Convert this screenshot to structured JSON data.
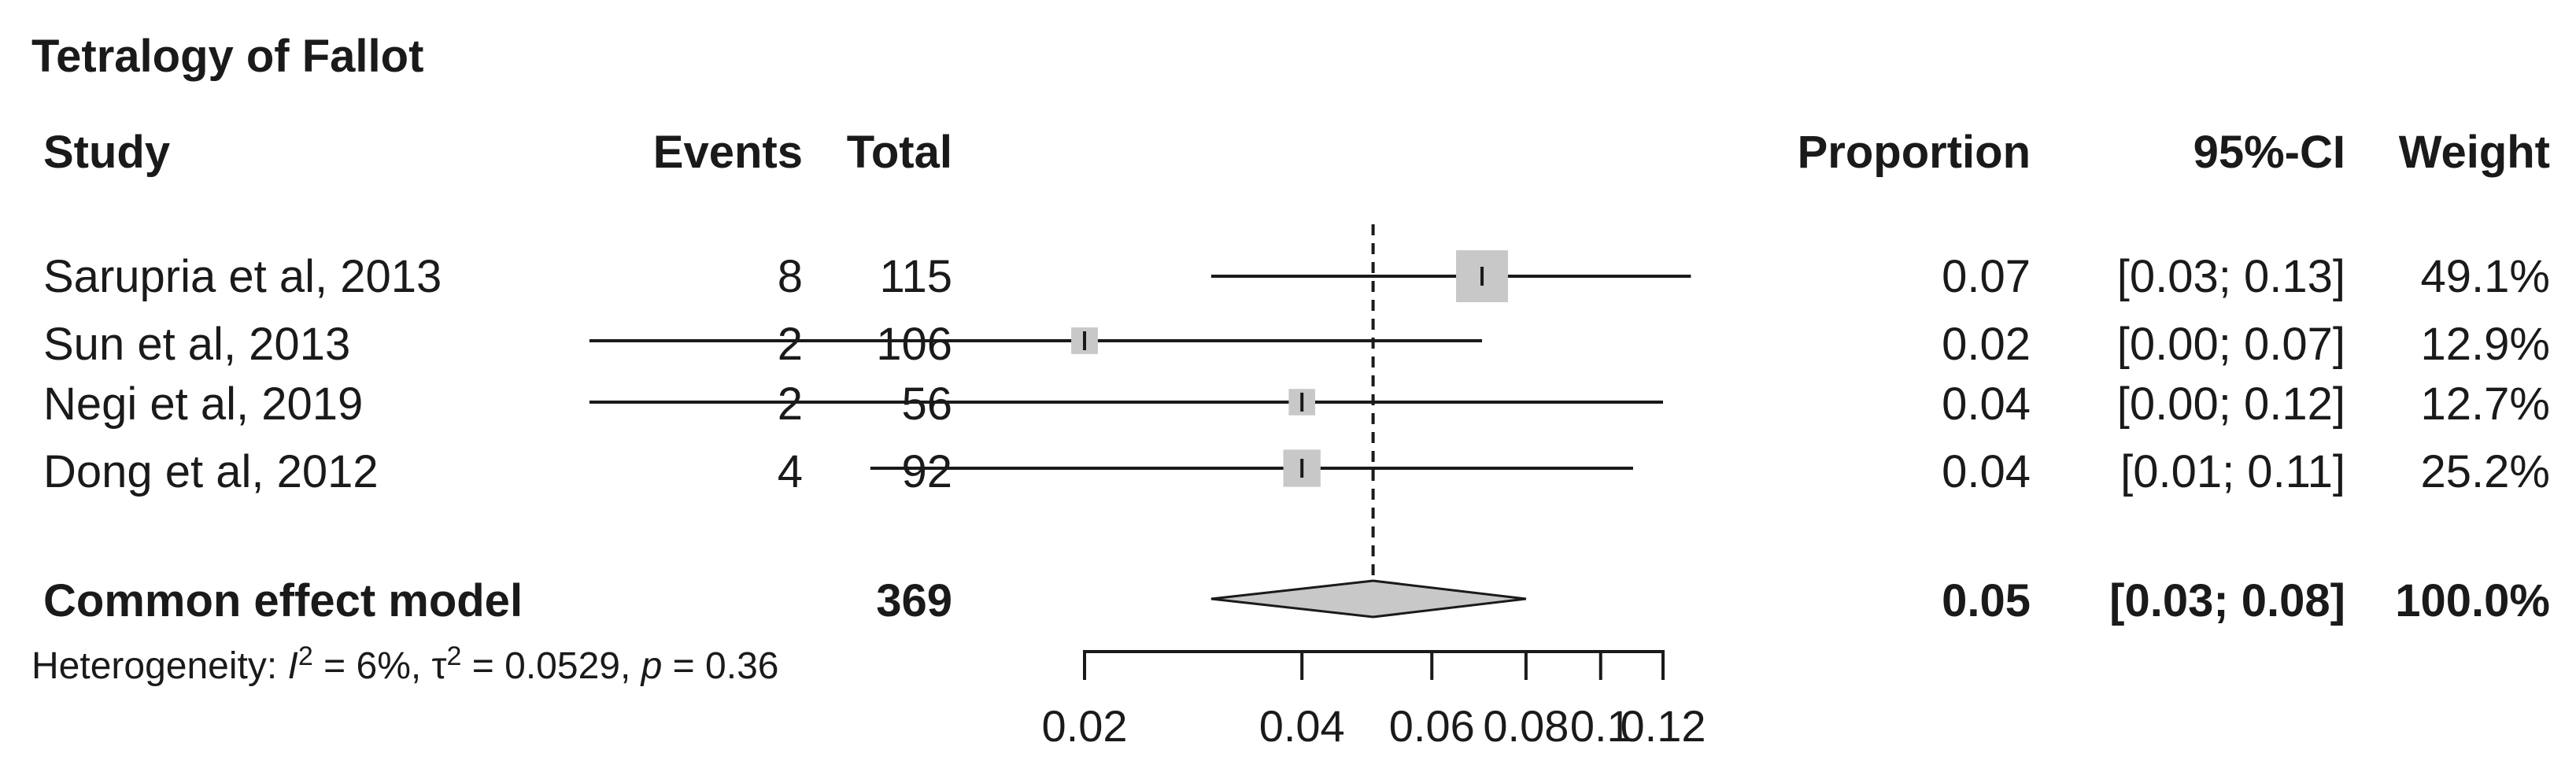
{
  "title": "Tetralogy of Fallot",
  "headers": {
    "study": "Study",
    "events": "Events",
    "total": "Total",
    "proportion": "Proportion",
    "ci": "95%-CI",
    "weight": "Weight"
  },
  "studies": [
    {
      "study": "Sarupria et al, 2013",
      "events": "8",
      "total": "115",
      "proportion": "0.07",
      "ci": "[0.03; 0.13]",
      "weight": "49.1%"
    },
    {
      "study": "Sun et al, 2013",
      "events": "2",
      "total": "106",
      "proportion": "0.02",
      "ci": "[0.00; 0.07]",
      "weight": "12.9%"
    },
    {
      "study": "Negi et al, 2019",
      "events": "2",
      "total": "56",
      "proportion": "0.04",
      "ci": "[0.00; 0.12]",
      "weight": "12.7%"
    },
    {
      "study": "Dong et al, 2012",
      "events": "4",
      "total": "92",
      "proportion": "0.04",
      "ci": "[0.01; 0.11]",
      "weight": "25.2%"
    }
  ],
  "pooled": {
    "label": "Common effect model",
    "total": "369",
    "proportion": "0.05",
    "ci": "[0.03; 0.08]",
    "weight": "100.0%"
  },
  "heterogeneity": {
    "prefix": "Heterogeneity: ",
    "i2_symbol": "I",
    "i2_value": " = 6%, ",
    "tau2_symbol": "τ",
    "tau2_value": " = 0.0529, ",
    "p_symbol": "p",
    "p_value": " = 0.36"
  },
  "chart_data": {
    "type": "forest",
    "title": "Tetralogy of Fallot",
    "studies": [
      {
        "name": "Sarupria et al, 2013",
        "estimate": 0.07,
        "lower": 0.03,
        "upper": 0.13,
        "weight": 49.1
      },
      {
        "name": "Sun et al, 2013",
        "estimate": 0.02,
        "lower": 0.0,
        "upper": 0.07,
        "weight": 12.9
      },
      {
        "name": "Negi et al, 2019",
        "estimate": 0.04,
        "lower": 0.0,
        "upper": 0.12,
        "weight": 12.7
      },
      {
        "name": "Dong et al, 2012",
        "estimate": 0.04,
        "lower": 0.01,
        "upper": 0.11,
        "weight": 25.2
      }
    ],
    "pooled": {
      "name": "Common effect model",
      "estimate": 0.05,
      "lower": 0.03,
      "upper": 0.08
    },
    "reference_line": 0.05,
    "x_ticks": [
      0.02,
      0.04,
      0.06,
      0.08,
      0.1,
      0.12
    ],
    "x_tick_labels": [
      "0.02",
      "0.04",
      "0.06",
      "0.08",
      "0.1",
      "0.12"
    ],
    "xlim": [
      0.02,
      0.12
    ],
    "x_scale": "logit",
    "colors": {
      "square": "#c8c8c8",
      "diamond": "#c8c8c8",
      "line": "#1a1a1a"
    }
  }
}
